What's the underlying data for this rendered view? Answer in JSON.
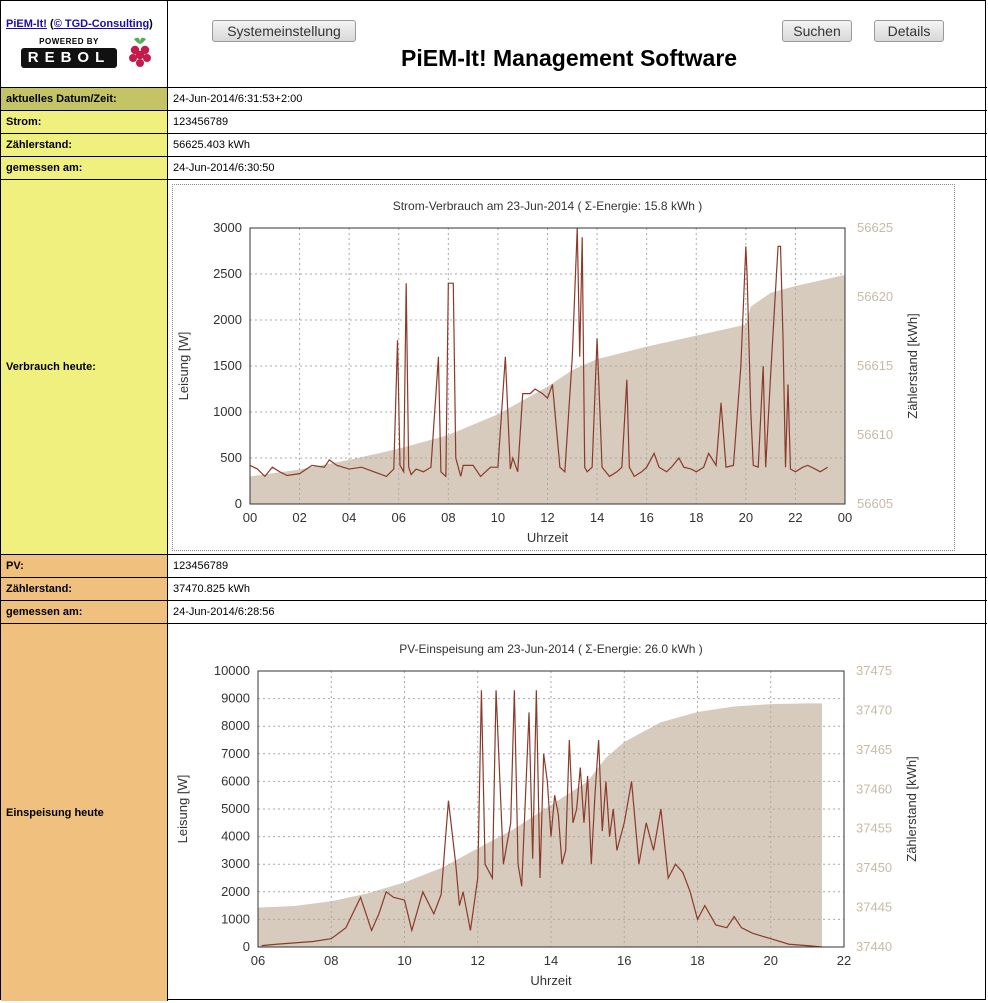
{
  "header": {
    "link_piem": "PiEM-It!",
    "link_tgd": "© TGD-Consulting",
    "powered_by": "POWERED BY",
    "rebol": "REBOL",
    "title": "PiEM-It! Management Software",
    "btn_system": "Systemeinstellung",
    "btn_search": "Suchen",
    "btn_details": "Details"
  },
  "rows": {
    "datetime_label": "aktuelles Datum/Zeit:",
    "datetime_value": "24-Jun-2014/6:31:53+2:00",
    "strom_label": "Strom:",
    "strom_value": "123456789",
    "zaehler1_label": "Zählerstand:",
    "zaehler1_value": "56625.403 kWh",
    "gemessen1_label": "gemessen am:",
    "gemessen1_value": "24-Jun-2014/6:30:50",
    "verbrauch_label": "Verbrauch heute:",
    "pv_label": "PV:",
    "pv_value": "123456789",
    "zaehler2_label": "Zählerstand:",
    "zaehler2_value": "37470.825 kWh",
    "gemessen2_label": "gemessen am:",
    "gemessen2_value": "24-Jun-2014/6:28:56",
    "einspeisung_label": "Einspeisung heute"
  },
  "colors": {
    "line": "#8b3a2a",
    "area": "#d6cbbd",
    "right_axis": "#c8bba6",
    "olive": "#c4c466",
    "yellow": "#f0f07e",
    "orange": "#f0c07e"
  },
  "chart_data": [
    {
      "type": "line",
      "title": "Strom-Verbrauch am 23-Jun-2014   ( Σ-Energie: 15.8 kWh )",
      "xlabel": "Uhrzeit",
      "ylabel": "Leisung [W]",
      "y2label": "Zählerstand [kWh]",
      "x_ticks": [
        "00",
        "02",
        "04",
        "06",
        "08",
        "10",
        "12",
        "14",
        "16",
        "18",
        "20",
        "22",
        "00"
      ],
      "xlim": [
        0,
        24
      ],
      "ylim": [
        0,
        3000
      ],
      "y_ticks": [
        0,
        500,
        1000,
        1500,
        2000,
        2500,
        3000
      ],
      "y2lim": [
        56605,
        56625
      ],
      "y2_ticks": [
        56605,
        56610,
        56615,
        56620,
        56625
      ],
      "power_x": [
        0,
        0.3,
        0.6,
        0.9,
        1.2,
        1.5,
        2,
        2.5,
        3,
        3.2,
        3.5,
        4,
        4.5,
        5,
        5.5,
        5.8,
        5.95,
        6.05,
        6.2,
        6.3,
        6.4,
        6.5,
        6.7,
        7,
        7.3,
        7.6,
        7.7,
        7.9,
        8,
        8.1,
        8.2,
        8.3,
        8.4,
        8.5,
        8.6,
        9,
        9.3,
        9.5,
        9.7,
        10,
        10.3,
        10.5,
        10.6,
        10.8,
        11,
        11.3,
        11.5,
        11.8,
        12,
        12.2,
        12.5,
        12.7,
        13,
        13.2,
        13.3,
        13.4,
        13.5,
        13.6,
        13.8,
        14,
        14.2,
        14.5,
        14.8,
        15,
        15.2,
        15.3,
        15.5,
        15.8,
        16,
        16.3,
        16.5,
        16.8,
        17,
        17.3,
        17.5,
        17.8,
        18,
        18.3,
        18.5,
        18.8,
        19,
        19.2,
        19.5,
        19.8,
        20,
        20.05,
        20.2,
        20.3,
        20.5,
        20.7,
        20.8,
        21,
        21.3,
        21.4,
        21.5,
        21.6,
        21.7,
        21.8,
        22,
        22.3,
        22.5,
        22.8,
        23,
        23.3,
        23.6,
        24
      ],
      "power_y": [
        420,
        380,
        300,
        400,
        350,
        310,
        330,
        420,
        400,
        480,
        420,
        380,
        400,
        350,
        300,
        380,
        1780,
        420,
        350,
        2400,
        400,
        320,
        380,
        350,
        400,
        1600,
        350,
        300,
        2400,
        2400,
        2400,
        500,
        400,
        300,
        420,
        420,
        300,
        350,
        400,
        400,
        1600,
        380,
        500,
        350,
        1200,
        1200,
        1250,
        1200,
        1150,
        1300,
        400,
        350,
        1600,
        3000,
        1600,
        2900,
        400,
        350,
        400,
        1800,
        400,
        300,
        350,
        400,
        1350,
        400,
        300,
        350,
        400,
        550,
        400,
        350,
        400,
        500,
        400,
        380,
        350,
        400,
        550,
        420,
        1100,
        400,
        420,
        1500,
        2800,
        2500,
        1000,
        420,
        400,
        1500,
        400,
        1400,
        2800,
        2800,
        1800,
        400,
        1300,
        380,
        350,
        400,
        420,
        380,
        350,
        400
      ],
      "counter_x": [
        0,
        2,
        4,
        6,
        8,
        10,
        12,
        13,
        14,
        16,
        18,
        20,
        20.2,
        21,
        22,
        23,
        24
      ],
      "counter_y": [
        56607,
        56607.5,
        56608.2,
        56609,
        56610,
        56611.5,
        56613.5,
        56614.7,
        56615.5,
        56616.4,
        56617.2,
        56618,
        56619.3,
        56620.3,
        56620.8,
        56621.2,
        56621.6
      ]
    },
    {
      "type": "line",
      "title": "PV-Einspeisung am 23-Jun-2014   ( Σ-Energie: 26.0 kWh )",
      "xlabel": "Uhrzeit",
      "ylabel": "Leisung [W]",
      "y2label": "Zählerstand [kWh]",
      "x_ticks": [
        "06",
        "08",
        "10",
        "12",
        "14",
        "16",
        "18",
        "20",
        "22"
      ],
      "xlim": [
        6,
        22
      ],
      "ylim": [
        0,
        10000
      ],
      "y_ticks": [
        0,
        1000,
        2000,
        3000,
        4000,
        5000,
        6000,
        7000,
        8000,
        9000,
        10000
      ],
      "y2lim": [
        37440,
        37475
      ],
      "y2_ticks": [
        37440,
        37445,
        37450,
        37455,
        37460,
        37465,
        37470,
        37475
      ],
      "power_x": [
        6.1,
        6.5,
        7,
        7.5,
        8,
        8.4,
        8.8,
        9.1,
        9.3,
        9.5,
        9.7,
        10,
        10.2,
        10.5,
        10.8,
        11,
        11.2,
        11.4,
        11.5,
        11.6,
        11.8,
        12,
        12.1,
        12.2,
        12.4,
        12.5,
        12.7,
        12.9,
        13,
        13.1,
        13.2,
        13.4,
        13.5,
        13.6,
        13.7,
        13.8,
        13.9,
        14,
        14.1,
        14.2,
        14.3,
        14.4,
        14.5,
        14.6,
        14.7,
        14.8,
        14.9,
        15,
        15.1,
        15.2,
        15.3,
        15.4,
        15.5,
        15.6,
        15.7,
        15.8,
        16,
        16.2,
        16.4,
        16.6,
        16.8,
        17,
        17.2,
        17.4,
        17.6,
        17.8,
        18,
        18.2,
        18.5,
        18.8,
        19,
        19.2,
        19.5,
        20,
        20.5,
        21,
        21.4
      ],
      "power_y": [
        50,
        100,
        150,
        200,
        300,
        700,
        1800,
        600,
        1200,
        2000,
        1800,
        1700,
        600,
        2000,
        1200,
        1900,
        5300,
        3000,
        1500,
        2000,
        600,
        2500,
        9300,
        3000,
        2500,
        9300,
        3000,
        4500,
        9300,
        3000,
        2200,
        8500,
        3200,
        9300,
        2500,
        7000,
        6000,
        4000,
        5500,
        4800,
        3000,
        3500,
        7500,
        4500,
        5000,
        6500,
        4500,
        6200,
        3000,
        5500,
        7500,
        4200,
        6000,
        4000,
        5000,
        3500,
        4500,
        6000,
        3000,
        4500,
        3500,
        5000,
        2500,
        3000,
        2700,
        2000,
        1000,
        1500,
        800,
        700,
        1100,
        700,
        500,
        300,
        100,
        50,
        0
      ],
      "counter_x": [
        6,
        7,
        8,
        9,
        10,
        11,
        12,
        13,
        14,
        15,
        15.5,
        16,
        17,
        18,
        19,
        20,
        21,
        21.4
      ],
      "counter_y": [
        37445,
        37445.2,
        37445.8,
        37446.8,
        37448.2,
        37450,
        37452.5,
        37455,
        37458,
        37461,
        37464,
        37466,
        37468.5,
        37469.8,
        37470.5,
        37470.8,
        37470.9,
        37470.9
      ]
    }
  ]
}
